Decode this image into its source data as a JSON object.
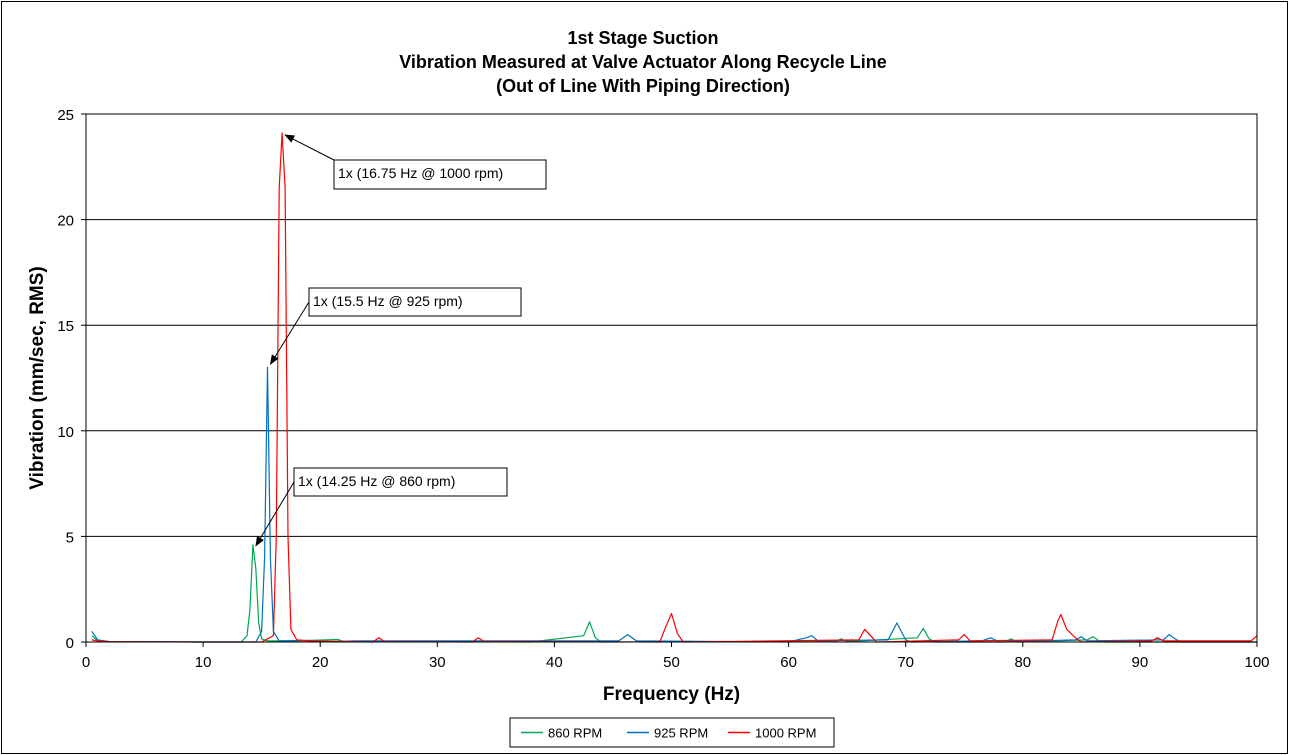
{
  "chart_data": {
    "type": "line",
    "title": [
      "1st Stage Suction",
      "Vibration Measured at Valve Actuator Along Recycle Line",
      "(Out of Line With Piping Direction)"
    ],
    "xlabel": "Frequency (Hz)",
    "ylabel": "Vibration (mm/sec, RMS)",
    "xlim": [
      0,
      100
    ],
    "ylim": [
      0,
      25
    ],
    "xticks": [
      0,
      10,
      20,
      30,
      40,
      50,
      60,
      70,
      80,
      90,
      100
    ],
    "yticks": [
      0,
      5,
      10,
      15,
      20,
      25
    ],
    "grid": "horizontal",
    "legend_position": "bottom",
    "series": [
      {
        "name": "860 RPM",
        "color": "#00a651",
        "points": [
          [
            0.5,
            0.3
          ],
          [
            1,
            0.05
          ],
          [
            2,
            0.02
          ],
          [
            10,
            0
          ],
          [
            13.25,
            0
          ],
          [
            13.75,
            0.3
          ],
          [
            14,
            1.5
          ],
          [
            14.25,
            4.6
          ],
          [
            14.5,
            3.5
          ],
          [
            14.75,
            0.9
          ],
          [
            15,
            0.15
          ],
          [
            15.5,
            0.05
          ],
          [
            18,
            0.05
          ],
          [
            21.5,
            0.12
          ],
          [
            22,
            0.02
          ],
          [
            38,
            0
          ],
          [
            42.5,
            0.3
          ],
          [
            43,
            0.95
          ],
          [
            43.5,
            0.2
          ],
          [
            44,
            0
          ],
          [
            64,
            0.02
          ],
          [
            64.5,
            0.15
          ],
          [
            65,
            0.02
          ],
          [
            71,
            0.2
          ],
          [
            71.5,
            0.65
          ],
          [
            72,
            0.15
          ],
          [
            72.5,
            0
          ],
          [
            78.5,
            0
          ],
          [
            79,
            0.15
          ],
          [
            79.5,
            0
          ],
          [
            85.5,
            0.1
          ],
          [
            86,
            0.25
          ],
          [
            86.5,
            0.05
          ],
          [
            87,
            0
          ],
          [
            100,
            0
          ]
        ]
      },
      {
        "name": "925 RPM",
        "color": "#0070c0",
        "points": [
          [
            0.5,
            0.5
          ],
          [
            1,
            0.1
          ],
          [
            2,
            0.02
          ],
          [
            10,
            0
          ],
          [
            14.5,
            0
          ],
          [
            15,
            0.5
          ],
          [
            15.25,
            4
          ],
          [
            15.5,
            13
          ],
          [
            15.75,
            4
          ],
          [
            16,
            0.5
          ],
          [
            16.5,
            0.05
          ],
          [
            19,
            0.08
          ],
          [
            20,
            0
          ],
          [
            23,
            0.05
          ],
          [
            38.5,
            0.05
          ],
          [
            45.5,
            0.05
          ],
          [
            46.25,
            0.35
          ],
          [
            47,
            0.05
          ],
          [
            60,
            0
          ],
          [
            61.5,
            0.2
          ],
          [
            62,
            0.3
          ],
          [
            62.5,
            0.05
          ],
          [
            68.5,
            0.1
          ],
          [
            69.25,
            0.9
          ],
          [
            70,
            0.1
          ],
          [
            70.5,
            0
          ],
          [
            76.5,
            0.05
          ],
          [
            77.25,
            0.2
          ],
          [
            78,
            0
          ],
          [
            84.5,
            0.1
          ],
          [
            85,
            0.25
          ],
          [
            85.5,
            0.05
          ],
          [
            92,
            0.1
          ],
          [
            92.5,
            0.35
          ],
          [
            93,
            0.15
          ],
          [
            93.5,
            0
          ],
          [
            100,
            0
          ]
        ]
      },
      {
        "name": "1000 RPM",
        "color": "#ff0000",
        "points": [
          [
            0.5,
            0.1
          ],
          [
            1,
            0.05
          ],
          [
            2,
            0.02
          ],
          [
            10,
            0
          ],
          [
            15,
            0
          ],
          [
            16,
            0.3
          ],
          [
            16.25,
            5
          ],
          [
            16.5,
            21.5
          ],
          [
            16.75,
            24.1
          ],
          [
            17,
            21.5
          ],
          [
            17.25,
            5
          ],
          [
            17.5,
            0.6
          ],
          [
            18,
            0.1
          ],
          [
            19,
            0.05
          ],
          [
            24.5,
            0
          ],
          [
            25,
            0.2
          ],
          [
            25.5,
            0.02
          ],
          [
            33,
            0
          ],
          [
            33.5,
            0.2
          ],
          [
            34,
            0.02
          ],
          [
            49,
            0
          ],
          [
            49.5,
            0.7
          ],
          [
            50,
            1.35
          ],
          [
            50.5,
            0.4
          ],
          [
            51,
            0
          ],
          [
            66,
            0.1
          ],
          [
            66.5,
            0.6
          ],
          [
            67,
            0.3
          ],
          [
            67.5,
            0
          ],
          [
            74.5,
            0.1
          ],
          [
            75,
            0.35
          ],
          [
            75.5,
            0.05
          ],
          [
            82.5,
            0.1
          ],
          [
            83,
            1.0
          ],
          [
            83.25,
            1.3
          ],
          [
            83.75,
            0.6
          ],
          [
            84.5,
            0.2
          ],
          [
            85,
            0
          ],
          [
            91,
            0.05
          ],
          [
            91.5,
            0.2
          ],
          [
            92,
            0.05
          ],
          [
            99.5,
            0.05
          ],
          [
            100,
            0.3
          ]
        ]
      }
    ],
    "annotations": [
      {
        "text": "1x (16.75 Hz @ 1000 rpm)",
        "point": [
          16.75,
          24.1
        ]
      },
      {
        "text": "1x (15.5 Hz @ 925 rpm)",
        "point": [
          15.5,
          13.3
        ]
      },
      {
        "text": "1x (14.25 Hz @ 860 rpm)",
        "point": [
          14.25,
          4.7
        ]
      }
    ]
  }
}
